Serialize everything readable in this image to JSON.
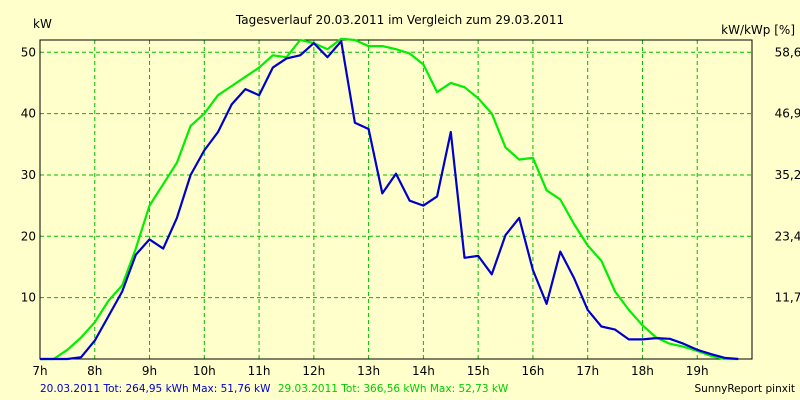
{
  "chart_data": {
    "type": "line",
    "title": "Tagesverlauf 20.03.2011 im Vergleich zum 29.03.2011",
    "ylabel_left": "kW",
    "ylabel_right": "kW/kWp [%]",
    "xlim": [
      7,
      20
    ],
    "ylim": [
      0,
      52
    ],
    "grid": true,
    "x_ticks": [
      {
        "x": 7,
        "label": "7h"
      },
      {
        "x": 8,
        "label": "8h"
      },
      {
        "x": 9,
        "label": "9h"
      },
      {
        "x": 10,
        "label": "10h"
      },
      {
        "x": 11,
        "label": "11h"
      },
      {
        "x": 12,
        "label": "12h"
      },
      {
        "x": 13,
        "label": "13h"
      },
      {
        "x": 14,
        "label": "14h"
      },
      {
        "x": 15,
        "label": "15h"
      },
      {
        "x": 16,
        "label": "16h"
      },
      {
        "x": 17,
        "label": "17h"
      },
      {
        "x": 18,
        "label": "18h"
      },
      {
        "x": 19,
        "label": "19h"
      }
    ],
    "y_ticks_left": [
      {
        "y": 10,
        "label": "10"
      },
      {
        "y": 20,
        "label": "20"
      },
      {
        "y": 30,
        "label": "30"
      },
      {
        "y": 40,
        "label": "40"
      },
      {
        "y": 50,
        "label": "50"
      }
    ],
    "y_ticks_right": [
      {
        "y": 10,
        "label": "11,7"
      },
      {
        "y": 20,
        "label": "23,4"
      },
      {
        "y": 30,
        "label": "35,2"
      },
      {
        "y": 40,
        "label": "46,9"
      },
      {
        "y": 50,
        "label": "58,6"
      }
    ],
    "series": [
      {
        "name": "20.03.2011",
        "color": "#0000cc",
        "x": [
          7.0,
          7.25,
          7.5,
          7.75,
          8.0,
          8.25,
          8.5,
          8.75,
          9.0,
          9.25,
          9.5,
          9.75,
          10.0,
          10.25,
          10.5,
          10.75,
          11.0,
          11.25,
          11.5,
          11.75,
          12.0,
          12.25,
          12.5,
          12.75,
          13.0,
          13.25,
          13.5,
          13.75,
          14.0,
          14.25,
          14.5,
          14.75,
          15.0,
          15.25,
          15.5,
          15.75,
          16.0,
          16.25,
          16.5,
          16.75,
          17.0,
          17.25,
          17.5,
          17.75,
          18.0,
          18.25,
          18.5,
          18.75,
          19.0,
          19.25,
          19.5,
          19.75
        ],
        "y": [
          0,
          0,
          0,
          0.3,
          3,
          7,
          11,
          17,
          19.5,
          18,
          23,
          30,
          34,
          37,
          41.5,
          44,
          43,
          47.5,
          49,
          49.5,
          51.5,
          49.2,
          51.8,
          38.5,
          37.5,
          27,
          30.2,
          25.8,
          25,
          26.5,
          37,
          16.5,
          16.8,
          13.8,
          20.2,
          23,
          14.5,
          9,
          17.5,
          13.2,
          8,
          5.3,
          4.8,
          3.2,
          3.2,
          3.4,
          3.3,
          2.5,
          1.5,
          0.8,
          0.2,
          0
        ]
      },
      {
        "name": "29.03.2011",
        "color": "#00ee00",
        "x": [
          7.0,
          7.25,
          7.5,
          7.75,
          8.0,
          8.25,
          8.5,
          8.75,
          9.0,
          9.25,
          9.5,
          9.75,
          10.0,
          10.25,
          10.5,
          10.75,
          11.0,
          11.25,
          11.5,
          11.75,
          12.0,
          12.25,
          12.5,
          12.75,
          13.0,
          13.25,
          13.5,
          13.75,
          14.0,
          14.25,
          14.5,
          14.75,
          15.0,
          15.25,
          15.5,
          15.75,
          16.0,
          16.25,
          16.5,
          16.75,
          17.0,
          17.25,
          17.5,
          17.75,
          18.0,
          18.25,
          18.5,
          18.75,
          19.0,
          19.25,
          19.5,
          19.75
        ],
        "y": [
          0,
          0,
          1.5,
          3.5,
          6,
          9.5,
          12,
          18,
          25,
          28.5,
          32,
          38,
          40,
          43,
          44.5,
          46,
          47.5,
          49.5,
          49.2,
          52,
          51.5,
          50.5,
          52.2,
          52,
          51,
          51,
          50.5,
          49.8,
          48,
          43.5,
          45,
          44.3,
          42.5,
          40,
          34.5,
          32.5,
          32.8,
          27.5,
          26,
          22,
          18.5,
          16,
          11,
          8,
          5.5,
          3.5,
          2.5,
          2,
          1.3,
          0.5,
          0,
          0
        ]
      }
    ]
  },
  "legend": {
    "series1_label": "20.03.2011 Tot: 264,95 kWh Max: 51,76 kW",
    "series2_label": "29.03.2011 Tot: 366,56 kWh Max: 52,73 kW"
  },
  "footer_right": "SunnyReport pinxit",
  "colors": {
    "background": "#ffffcc",
    "grid": "#00bb00",
    "series1": "#0000cc",
    "series2": "#00ee00"
  }
}
